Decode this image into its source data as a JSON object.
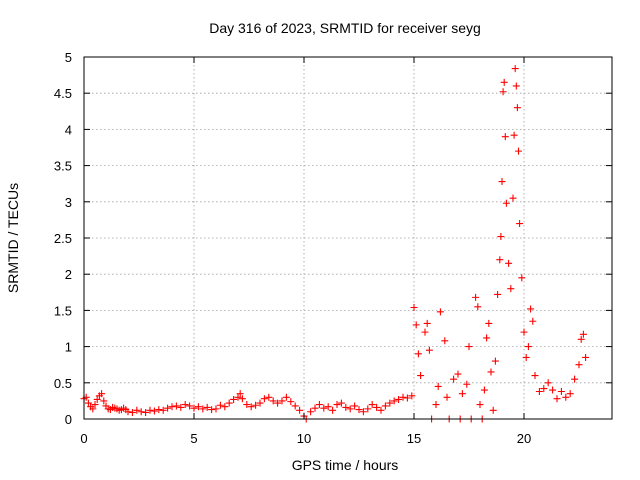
{
  "chart_data": {
    "type": "scatter",
    "title": "Day 316 of 2023, SRMTID for receiver seyg",
    "xlabel": "GPS time / hours",
    "ylabel": "SRMTID / TECUs",
    "xlim": [
      0,
      24
    ],
    "ylim": [
      0,
      5
    ],
    "xticks": [
      0,
      5,
      10,
      15,
      20
    ],
    "xtick_labels": [
      "0",
      "5",
      "10",
      "15",
      "20"
    ],
    "yticks": [
      0,
      0.5,
      1,
      1.5,
      2,
      2.5,
      3,
      3.5,
      4,
      4.5,
      5
    ],
    "ytick_labels": [
      "0",
      "0.5",
      "1",
      "1.5",
      "2",
      "2.5",
      "3",
      "3.5",
      "4",
      "4.5",
      "5"
    ],
    "grid": true,
    "marker": "+",
    "series": [
      {
        "name": "SRMTID",
        "color": "#ff0000",
        "points": [
          [
            0.0,
            0.28
          ],
          [
            0.1,
            0.3
          ],
          [
            0.2,
            0.22
          ],
          [
            0.3,
            0.17
          ],
          [
            0.4,
            0.14
          ],
          [
            0.5,
            0.2
          ],
          [
            0.6,
            0.27
          ],
          [
            0.7,
            0.32
          ],
          [
            0.8,
            0.35
          ],
          [
            0.9,
            0.25
          ],
          [
            1.0,
            0.18
          ],
          [
            1.1,
            0.14
          ],
          [
            1.2,
            0.13
          ],
          [
            1.3,
            0.16
          ],
          [
            1.4,
            0.15
          ],
          [
            1.5,
            0.14
          ],
          [
            1.6,
            0.12
          ],
          [
            1.7,
            0.13
          ],
          [
            1.8,
            0.15
          ],
          [
            1.9,
            0.13
          ],
          [
            2.0,
            0.1
          ],
          [
            2.2,
            0.09
          ],
          [
            2.4,
            0.12
          ],
          [
            2.6,
            0.1
          ],
          [
            2.8,
            0.09
          ],
          [
            3.0,
            0.12
          ],
          [
            3.2,
            0.11
          ],
          [
            3.4,
            0.13
          ],
          [
            3.6,
            0.12
          ],
          [
            3.8,
            0.15
          ],
          [
            4.0,
            0.17
          ],
          [
            4.2,
            0.18
          ],
          [
            4.4,
            0.16
          ],
          [
            4.6,
            0.2
          ],
          [
            4.8,
            0.18
          ],
          [
            5.0,
            0.15
          ],
          [
            5.2,
            0.17
          ],
          [
            5.4,
            0.14
          ],
          [
            5.6,
            0.16
          ],
          [
            5.8,
            0.13
          ],
          [
            6.0,
            0.14
          ],
          [
            6.2,
            0.19
          ],
          [
            6.4,
            0.17
          ],
          [
            6.6,
            0.22
          ],
          [
            6.8,
            0.27
          ],
          [
            7.0,
            0.3
          ],
          [
            7.1,
            0.35
          ],
          [
            7.2,
            0.28
          ],
          [
            7.4,
            0.2
          ],
          [
            7.6,
            0.17
          ],
          [
            7.8,
            0.19
          ],
          [
            8.0,
            0.22
          ],
          [
            8.2,
            0.28
          ],
          [
            8.4,
            0.3
          ],
          [
            8.6,
            0.25
          ],
          [
            8.8,
            0.22
          ],
          [
            9.0,
            0.25
          ],
          [
            9.2,
            0.3
          ],
          [
            9.4,
            0.24
          ],
          [
            9.6,
            0.18
          ],
          [
            9.8,
            0.12
          ],
          [
            10.0,
            0.04
          ],
          [
            10.1,
            0.0
          ],
          [
            10.3,
            0.1
          ],
          [
            10.5,
            0.15
          ],
          [
            10.7,
            0.2
          ],
          [
            10.9,
            0.15
          ],
          [
            11.1,
            0.17
          ],
          [
            11.3,
            0.12
          ],
          [
            11.5,
            0.2
          ],
          [
            11.7,
            0.22
          ],
          [
            11.9,
            0.16
          ],
          [
            12.1,
            0.14
          ],
          [
            12.3,
            0.18
          ],
          [
            12.5,
            0.13
          ],
          [
            12.7,
            0.1
          ],
          [
            12.9,
            0.14
          ],
          [
            13.1,
            0.2
          ],
          [
            13.3,
            0.16
          ],
          [
            13.5,
            0.12
          ],
          [
            13.7,
            0.18
          ],
          [
            13.9,
            0.22
          ],
          [
            14.1,
            0.25
          ],
          [
            14.3,
            0.27
          ],
          [
            14.5,
            0.3
          ],
          [
            14.7,
            0.29
          ],
          [
            14.9,
            0.32
          ],
          [
            15.0,
            1.54
          ],
          [
            15.1,
            1.3
          ],
          [
            15.2,
            0.9
          ],
          [
            15.3,
            0.6
          ],
          [
            15.5,
            1.2
          ],
          [
            15.6,
            1.32
          ],
          [
            15.7,
            0.95
          ],
          [
            15.8,
            0.0
          ],
          [
            16.0,
            0.2
          ],
          [
            16.1,
            0.45
          ],
          [
            16.2,
            1.48
          ],
          [
            16.4,
            1.08
          ],
          [
            16.5,
            0.3
          ],
          [
            16.6,
            0.0
          ],
          [
            16.8,
            0.55
          ],
          [
            17.0,
            0.62
          ],
          [
            17.1,
            0.0
          ],
          [
            17.2,
            0.35
          ],
          [
            17.4,
            0.48
          ],
          [
            17.5,
            1.0
          ],
          [
            17.6,
            0.0
          ],
          [
            17.8,
            1.68
          ],
          [
            17.9,
            1.55
          ],
          [
            18.0,
            0.2
          ],
          [
            18.1,
            0.0
          ],
          [
            18.2,
            0.4
          ],
          [
            18.3,
            1.12
          ],
          [
            18.4,
            1.32
          ],
          [
            18.5,
            0.65
          ],
          [
            18.6,
            0.12
          ],
          [
            18.7,
            0.8
          ],
          [
            18.8,
            1.72
          ],
          [
            18.9,
            2.2
          ],
          [
            18.95,
            2.52
          ],
          [
            19.0,
            3.28
          ],
          [
            19.05,
            4.52
          ],
          [
            19.1,
            4.65
          ],
          [
            19.15,
            3.9
          ],
          [
            19.2,
            2.98
          ],
          [
            19.3,
            2.15
          ],
          [
            19.4,
            1.8
          ],
          [
            19.5,
            3.05
          ],
          [
            19.55,
            3.92
          ],
          [
            19.6,
            4.84
          ],
          [
            19.65,
            4.6
          ],
          [
            19.7,
            4.3
          ],
          [
            19.75,
            3.7
          ],
          [
            19.8,
            2.7
          ],
          [
            19.9,
            1.95
          ],
          [
            20.0,
            1.2
          ],
          [
            20.1,
            0.85
          ],
          [
            20.2,
            1.0
          ],
          [
            20.3,
            1.52
          ],
          [
            20.4,
            1.35
          ],
          [
            20.5,
            0.6
          ],
          [
            20.7,
            0.38
          ],
          [
            20.9,
            0.42
          ],
          [
            21.1,
            0.5
          ],
          [
            21.3,
            0.4
          ],
          [
            21.5,
            0.28
          ],
          [
            21.7,
            0.38
          ],
          [
            21.9,
            0.3
          ],
          [
            22.1,
            0.35
          ],
          [
            22.3,
            0.55
          ],
          [
            22.5,
            0.75
          ],
          [
            22.6,
            1.1
          ],
          [
            22.7,
            1.17
          ],
          [
            22.8,
            0.85
          ]
        ]
      }
    ]
  }
}
